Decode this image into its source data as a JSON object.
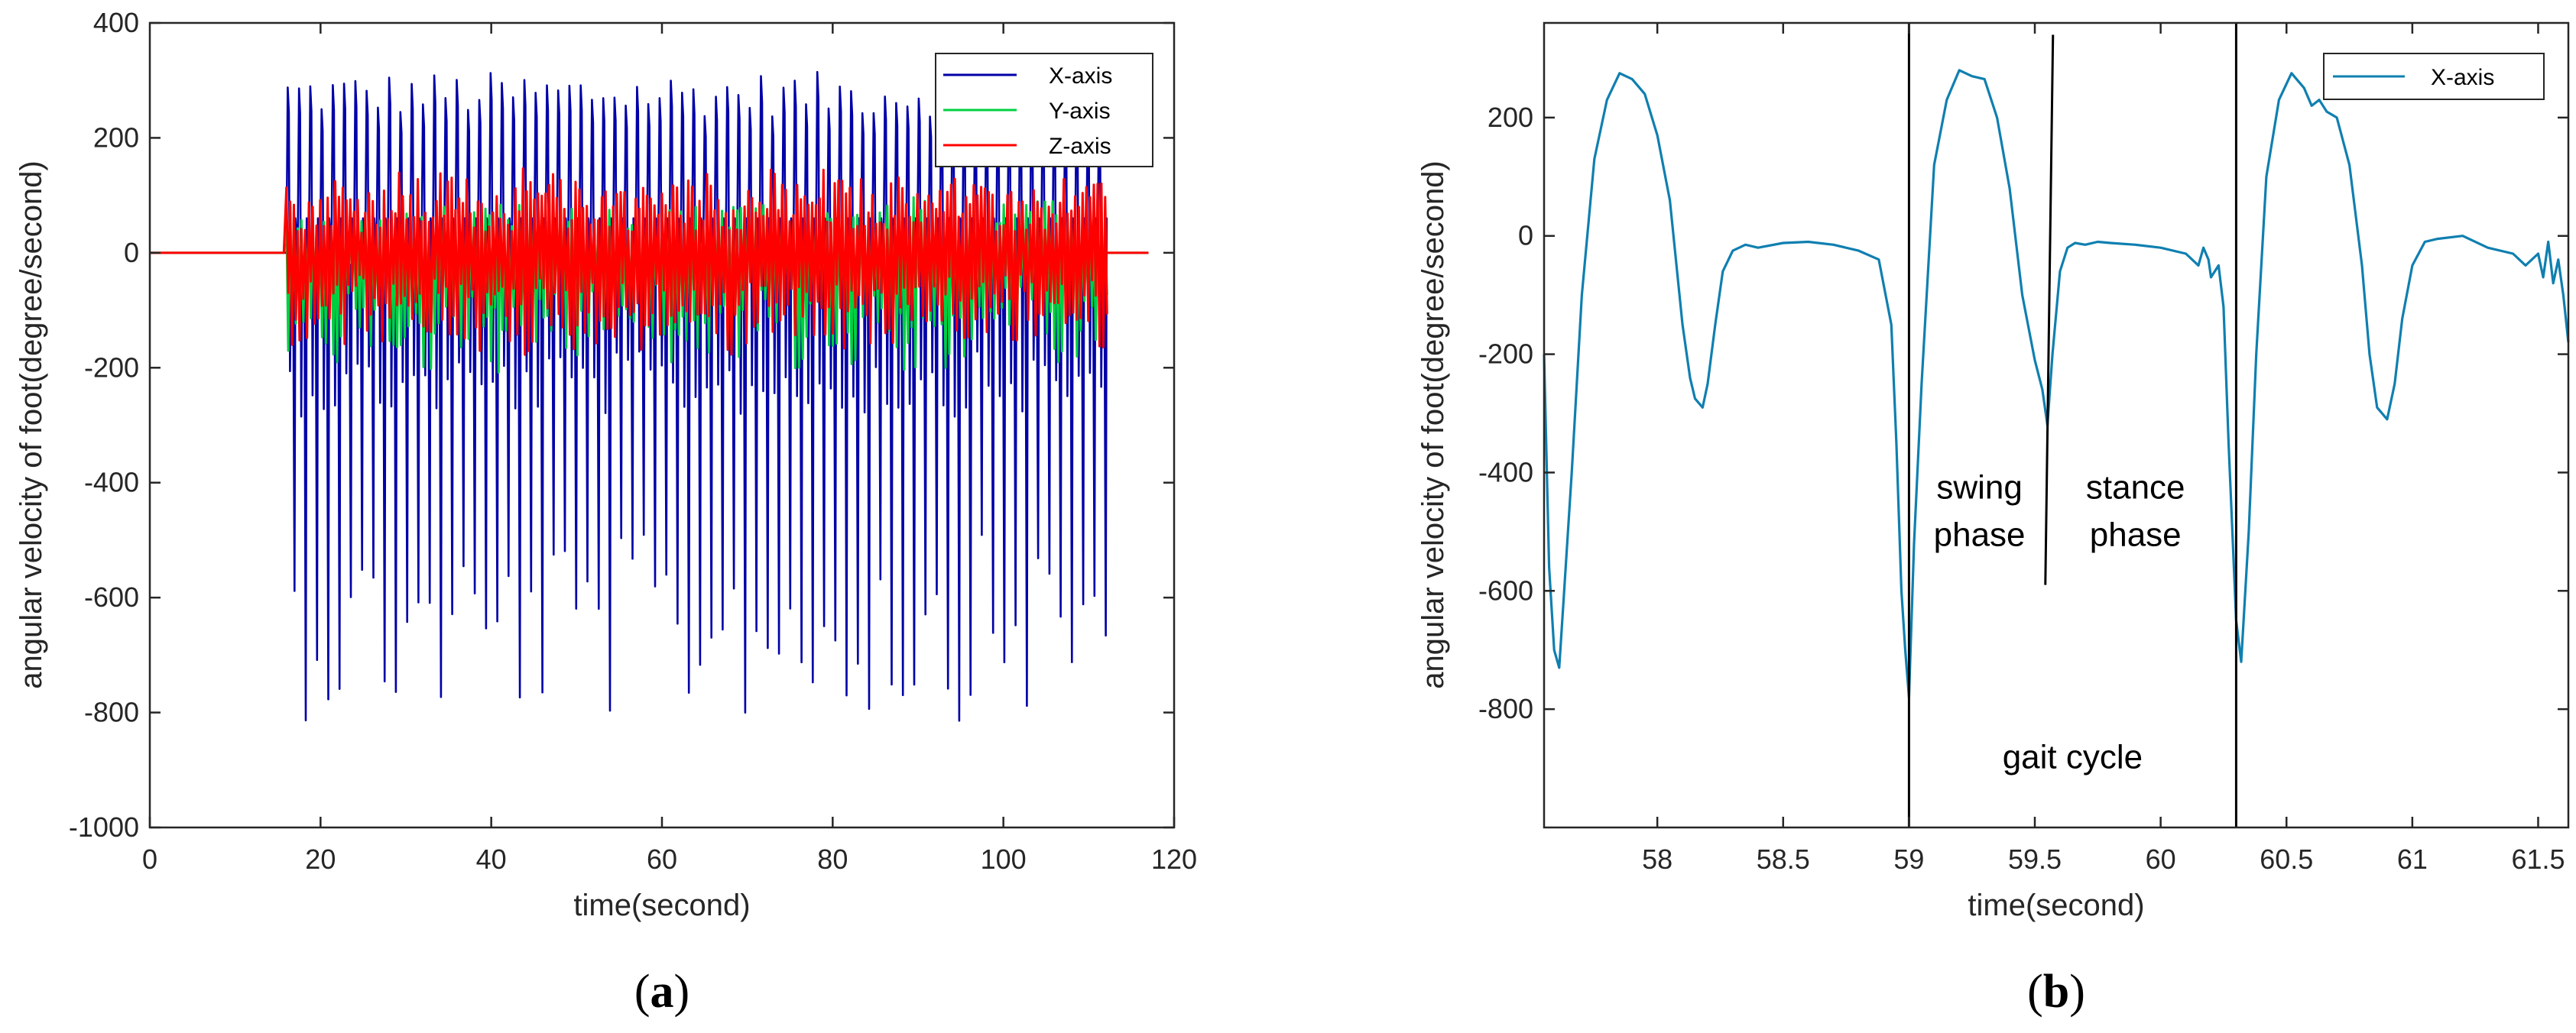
{
  "chart_data": [
    {
      "type": "line",
      "panel_label": "a",
      "xlabel": "time(second)",
      "ylabel": "angular velocity of foot(degree/second)",
      "xlim": [
        0,
        120
      ],
      "ylim": [
        -1000,
        400
      ],
      "xticks": [
        0,
        20,
        40,
        60,
        80,
        100,
        120
      ],
      "yticks": [
        -1000,
        -800,
        -600,
        -400,
        -200,
        0,
        200,
        400
      ],
      "legend_position": "top-right",
      "active_window": [
        16,
        112
      ],
      "step_period": 1.32,
      "series": [
        {
          "name": "X-axis",
          "color": "#0000a8",
          "peak_max": 315,
          "peak_min": -815,
          "baseline": 0
        },
        {
          "name": "Y-axis",
          "color": "#00d040",
          "peak_max": 100,
          "peak_min": -220,
          "baseline": 0
        },
        {
          "name": "Z-axis",
          "color": "#ff0000",
          "peak_max": 150,
          "peak_min": -200,
          "baseline": 0
        }
      ]
    },
    {
      "type": "line",
      "panel_label": "b",
      "xlabel": "time(second)",
      "ylabel": "angular velocity of foot(degree/second)",
      "xlim": [
        57.55,
        61.62
      ],
      "ylim": [
        -1000,
        360
      ],
      "xticks": [
        58,
        58.5,
        59,
        59.5,
        60,
        60.5,
        61,
        61.5
      ],
      "yticks": [
        -800,
        -600,
        -400,
        -200,
        0,
        200
      ],
      "legend_position": "top-right",
      "series": [
        {
          "name": "X-axis",
          "color": "#0f7fb0",
          "x": [
            57.55,
            57.57,
            57.59,
            57.61,
            57.63,
            57.66,
            57.7,
            57.75,
            57.8,
            57.85,
            57.9,
            57.95,
            58.0,
            58.05,
            58.1,
            58.13,
            58.15,
            58.18,
            58.2,
            58.23,
            58.26,
            58.3,
            58.35,
            58.4,
            58.5,
            58.6,
            58.7,
            58.8,
            58.88,
            58.93,
            58.95,
            58.97,
            58.985,
            59.0,
            59.02,
            59.05,
            59.1,
            59.15,
            59.2,
            59.25,
            59.3,
            59.35,
            59.4,
            59.45,
            59.5,
            59.53,
            59.55,
            59.57,
            59.6,
            59.63,
            59.66,
            59.7,
            59.75,
            59.8,
            59.9,
            60.0,
            60.1,
            60.15,
            60.17,
            60.19,
            60.2,
            60.23,
            60.25,
            60.27,
            60.3,
            60.32,
            60.35,
            60.38,
            60.42,
            60.47,
            60.52,
            60.57,
            60.6,
            60.63,
            60.66,
            60.7,
            60.75,
            60.8,
            60.83,
            60.86,
            60.9,
            60.93,
            60.96,
            61.0,
            61.05,
            61.1,
            61.2,
            61.3,
            61.4,
            61.45,
            61.5,
            61.52,
            61.54,
            61.56,
            61.58,
            61.6,
            61.62
          ],
          "y": [
            -200,
            -560,
            -700,
            -730,
            -600,
            -400,
            -100,
            130,
            230,
            275,
            265,
            240,
            170,
            60,
            -150,
            -240,
            -275,
            -290,
            -250,
            -150,
            -60,
            -25,
            -15,
            -20,
            -12,
            -10,
            -15,
            -25,
            -40,
            -150,
            -350,
            -600,
            -700,
            -780,
            -520,
            -250,
            120,
            230,
            280,
            270,
            265,
            200,
            80,
            -100,
            -210,
            -260,
            -320,
            -200,
            -60,
            -20,
            -12,
            -15,
            -10,
            -12,
            -15,
            -20,
            -30,
            -50,
            -20,
            -40,
            -70,
            -50,
            -120,
            -350,
            -650,
            -720,
            -500,
            -200,
            100,
            230,
            275,
            250,
            220,
            230,
            210,
            200,
            120,
            -50,
            -200,
            -290,
            -310,
            -250,
            -140,
            -50,
            -10,
            -5,
            0,
            -20,
            -30,
            -50,
            -30,
            -70,
            -10,
            -80,
            -40,
            -100,
            -180
          ]
        }
      ],
      "vertical_lines": [
        59.0,
        59.56,
        60.3
      ],
      "annotations": [
        {
          "text_lines": [
            "swing",
            "phase"
          ],
          "x": 59.28,
          "y": -480
        },
        {
          "text_lines": [
            "stance",
            "phase"
          ],
          "x": 59.9,
          "y": -480
        },
        {
          "text_lines": [
            "gait cycle"
          ],
          "x": 59.65,
          "y": -900
        }
      ]
    }
  ],
  "captions": {
    "a": [
      "(",
      "a",
      ")"
    ],
    "b": [
      "(",
      "b",
      ")"
    ]
  }
}
